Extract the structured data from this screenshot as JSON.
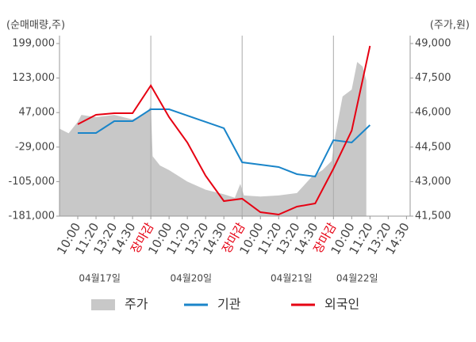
{
  "chart_data": {
    "type": "line",
    "ylabel": "(순매매량,주)",
    "y2label": "(주가,원)",
    "xlim": [
      -1,
      18.2
    ],
    "xticks": [
      {
        "value": 0,
        "label": "10:00"
      },
      {
        "value": 1,
        "label": "11:20"
      },
      {
        "value": 2,
        "label": "13:20"
      },
      {
        "value": 3,
        "label": "14:30"
      },
      {
        "value": 4,
        "label": "장마감",
        "color": "#e60012"
      },
      {
        "value": 5,
        "label": "10:00"
      },
      {
        "value": 6,
        "label": "11:20"
      },
      {
        "value": 7,
        "label": "13:20"
      },
      {
        "value": 8,
        "label": "14:30"
      },
      {
        "value": 9,
        "label": "장마감",
        "color": "#e60012"
      },
      {
        "value": 10,
        "label": "10:00"
      },
      {
        "value": 11,
        "label": "11:20"
      },
      {
        "value": 12,
        "label": "13:20"
      },
      {
        "value": 13,
        "label": "14:30"
      },
      {
        "value": 14,
        "label": "장마감",
        "color": "#e60012"
      },
      {
        "value": 15,
        "label": "10:00"
      },
      {
        "value": 16,
        "label": "11:20"
      },
      {
        "value": 17,
        "label": "13:20"
      },
      {
        "value": 18,
        "label": "14:30"
      }
    ],
    "date_labels": [
      {
        "value": 1.2,
        "label": "04월17일"
      },
      {
        "value": 6.2,
        "label": "04월20일"
      },
      {
        "value": 11.7,
        "label": "04월21일"
      },
      {
        "value": 15.3,
        "label": "04월22일"
      }
    ],
    "ylim": [
      -181000,
      199000
    ],
    "yticks": [
      {
        "value": 199000,
        "label": "199,000"
      },
      {
        "value": 123000,
        "label": "123,000"
      },
      {
        "value": 47000,
        "label": "47,000"
      },
      {
        "value": -29000,
        "label": "-29,000"
      },
      {
        "value": -105000,
        "label": "-105,000"
      },
      {
        "value": -181000,
        "label": "-181,000"
      }
    ],
    "y2lim": [
      41500,
      49000
    ],
    "y2ticks": [
      {
        "value": 49000,
        "label": "49,000"
      },
      {
        "value": 47500,
        "label": "47,500"
      },
      {
        "value": 46000,
        "label": "46,000"
      },
      {
        "value": 44500,
        "label": "44,500"
      },
      {
        "value": 43000,
        "label": "43,000"
      },
      {
        "value": 41500,
        "label": "41,500"
      }
    ],
    "series": [
      {
        "name": "주가",
        "color": "#c8c8c8",
        "axis": "y2",
        "kind": "area",
        "x": [
          -1,
          -0.5,
          0,
          0.2,
          1,
          2,
          3,
          3.8,
          4,
          4.1,
          4.5,
          5,
          6,
          7,
          8,
          8.6,
          8.9,
          9.1,
          10,
          11,
          12,
          12.8,
          13.4,
          13.9,
          14.1,
          14.5,
          15,
          15.3,
          15.6,
          15.8
        ],
        "values": [
          45300,
          45100,
          45600,
          45900,
          45800,
          45900,
          45700,
          46000,
          46300,
          44100,
          43700,
          43500,
          43000,
          42650,
          42450,
          42300,
          42900,
          42400,
          42350,
          42400,
          42500,
          43200,
          43500,
          43900,
          45000,
          46700,
          47000,
          48200,
          48000,
          47400
        ]
      },
      {
        "name": "기관",
        "color": "#1a85c9",
        "kind": "line",
        "x": [
          0,
          1,
          2,
          3,
          4,
          5,
          8,
          9,
          10,
          11,
          12,
          13,
          14,
          15,
          16
        ],
        "values": [
          2000,
          2000,
          28200,
          28200,
          54300,
          54300,
          12500,
          -62500,
          -67700,
          -72900,
          -88600,
          -93800,
          -13700,
          -18900,
          19500
        ]
      },
      {
        "name": "외국인",
        "color": "#e60012",
        "kind": "line",
        "x": [
          0,
          1,
          2,
          3,
          4,
          5,
          6,
          7,
          8,
          9,
          10,
          11,
          12,
          13,
          14,
          15,
          16
        ],
        "values": [
          21200,
          42100,
          45600,
          45600,
          106600,
          36900,
          -18900,
          -92100,
          -147900,
          -142600,
          -172300,
          -177500,
          -160100,
          -153100,
          -76400,
          7300,
          193800
        ]
      }
    ]
  }
}
